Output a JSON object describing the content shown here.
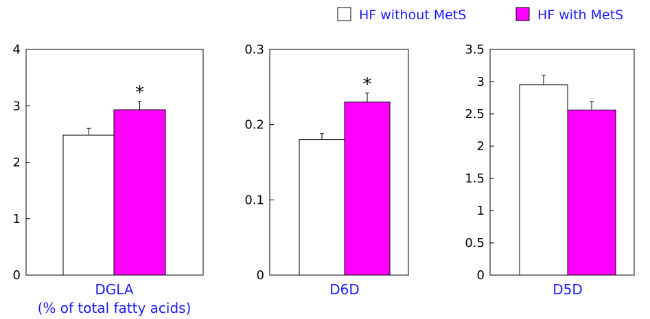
{
  "legend": {
    "items": [
      {
        "label": "HF without MetS",
        "color": "#ffffff"
      },
      {
        "label": "HF with MetS",
        "color": "#ff00ff"
      }
    ],
    "text_color": "#1a1aff",
    "placement": "top-right"
  },
  "colors": {
    "without": "#ffffff",
    "with": "#ff00ff",
    "label": "#1a1aff",
    "axis": "#000000"
  },
  "chart_data": [
    {
      "type": "bar",
      "xlabel": "DGLA",
      "xlabel2": "(% of total fatty acids)",
      "ylim": [
        0,
        4
      ],
      "yticks": [
        "0",
        "1",
        "2",
        "3",
        "4"
      ],
      "series": [
        {
          "name": "HF without MetS",
          "value": 2.48,
          "error": 0.12,
          "significance": ""
        },
        {
          "name": "HF with MetS",
          "value": 2.93,
          "error": 0.15,
          "significance": "*"
        }
      ]
    },
    {
      "type": "bar",
      "xlabel": "D6D",
      "xlabel2": "",
      "ylim": [
        0,
        0.3
      ],
      "yticks": [
        "0",
        "0.1",
        "0.2",
        "0.3"
      ],
      "series": [
        {
          "name": "HF without MetS",
          "value": 0.18,
          "error": 0.008,
          "significance": ""
        },
        {
          "name": "HF with MetS",
          "value": 0.23,
          "error": 0.012,
          "significance": "*"
        }
      ]
    },
    {
      "type": "bar",
      "xlabel": "D5D",
      "xlabel2": "",
      "ylim": [
        0,
        3.5
      ],
      "yticks": [
        "0",
        "0.5",
        "1",
        "1.5",
        "2",
        "2.5",
        "3",
        "3.5"
      ],
      "series": [
        {
          "name": "HF without MetS",
          "value": 2.95,
          "error": 0.15,
          "significance": ""
        },
        {
          "name": "HF with MetS",
          "value": 2.56,
          "error": 0.13,
          "significance": ""
        }
      ]
    }
  ]
}
